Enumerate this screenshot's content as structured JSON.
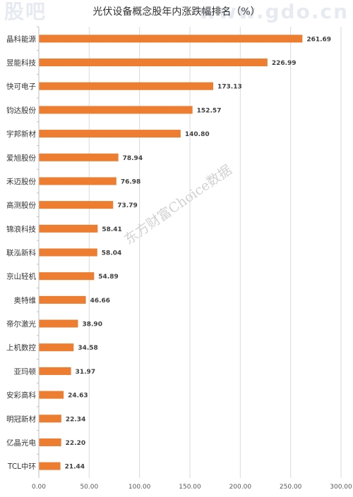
{
  "watermark_top": {
    "left": "股吧",
    "right": "www.gdo.cn"
  },
  "watermark_mid": "东方财富Choice数据",
  "chart_data": {
    "type": "bar",
    "orientation": "horizontal",
    "title": "光伏设备概念股年内涨跌幅排名（%）",
    "categories": [
      "晶科能源",
      "昱能科技",
      "快可电子",
      "钧达股份",
      "宇邦新材",
      "爱旭股份",
      "禾迈股份",
      "高测股份",
      "锦浪科技",
      "联泓新科",
      "京山轻机",
      "奥特维",
      "帝尔激光",
      "上机数控",
      "亚玛顿",
      "安彩高科",
      "明冠新材",
      "亿晶光电",
      "TCL中环"
    ],
    "values": [
      261.69,
      226.99,
      173.13,
      152.57,
      140.8,
      78.94,
      76.98,
      73.79,
      58.41,
      58.04,
      54.89,
      46.66,
      38.9,
      34.58,
      31.97,
      24.63,
      22.34,
      22.2,
      21.44
    ],
    "value_labels": [
      "261.69",
      "226.99",
      "173.13",
      "152.57",
      "140.80",
      "78.94",
      "76.98",
      "73.79",
      "58.41",
      "58.04",
      "54.89",
      "46.66",
      "38.90",
      "34.58",
      "31.97",
      "24.63",
      "22.34",
      "22.20",
      "21.44"
    ],
    "xlim": [
      0,
      300
    ],
    "xticks": [
      0,
      50,
      100,
      150,
      200,
      250,
      300
    ],
    "xtick_labels": [
      "0.00",
      "50.00",
      "100.00",
      "150.00",
      "200.00",
      "250.00",
      "300.00"
    ],
    "grid": true,
    "bar_color": "#ed7d31",
    "grid_color": "#d9d9d9"
  }
}
